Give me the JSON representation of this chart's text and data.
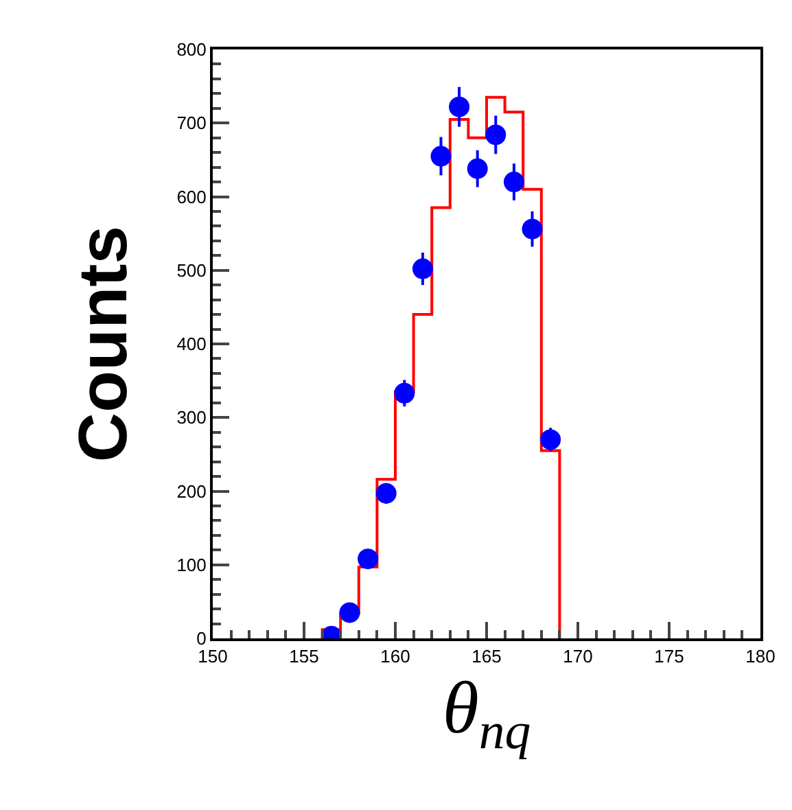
{
  "chart_data": {
    "type": "histogram",
    "xlabel": "θ$_{nq}$",
    "ylabel": "Counts",
    "series": [
      {
        "color": "#ff0000",
        "bins": [
          156,
          157,
          158,
          159,
          160,
          161,
          162,
          163,
          164,
          165,
          166,
          167,
          168,
          169
        ],
        "values": [
          12,
          34,
          97,
          216,
          335,
          440,
          585,
          705,
          680,
          735,
          715,
          610,
          255
        ]
      },
      {
        "type": "scatter",
        "color": "#0000ff",
        "marker": "circle",
        "x": [
          156.5,
          157.5,
          158.5,
          159.5,
          160.5,
          161.5,
          162.5,
          163.5,
          164.5,
          165.5,
          166.5,
          167.5,
          168.5
        ],
        "values": [
          3,
          35,
          108,
          197,
          333,
          502,
          655,
          722,
          638,
          684,
          620,
          556,
          270
        ],
        "errors": [
          2,
          6,
          10,
          14,
          18,
          22,
          26,
          27,
          25,
          26,
          25,
          24,
          16
        ]
      }
    ],
    "xlim": [
      150,
      180
    ],
    "xticks": [
      150,
      155,
      160,
      165,
      170,
      175,
      180
    ],
    "ylim": [
      0,
      800
    ],
    "yticks": [
      0,
      100,
      200,
      300,
      400,
      500,
      600,
      700,
      800
    ]
  }
}
